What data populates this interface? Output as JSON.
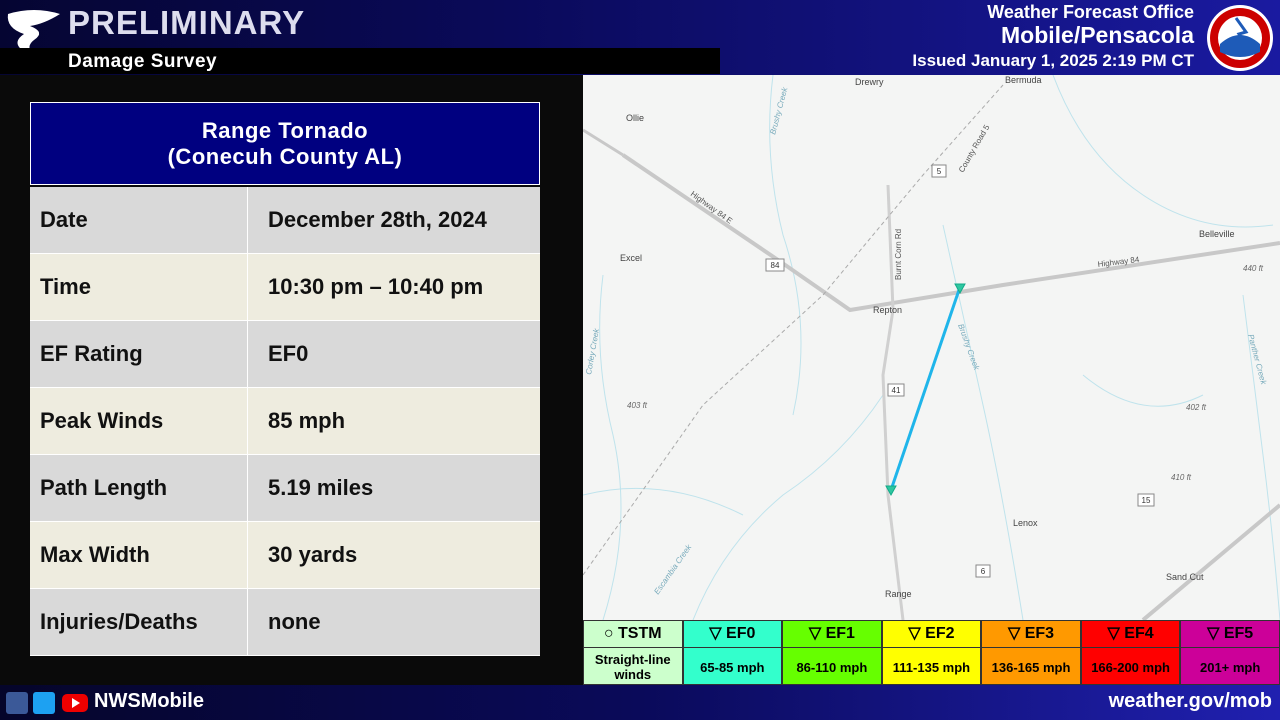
{
  "header": {
    "title": "PRELIMINARY",
    "subtitle": "Damage Survey",
    "office": "Weather Forecast Office",
    "location": "Mobile/Pensacola",
    "issued": "Issued January 1, 2025 2:19 PM CT"
  },
  "table": {
    "title": [
      "Range Tornado",
      "(Conecuh County AL)"
    ],
    "rows": [
      [
        "Date",
        "December 28th, 2024"
      ],
      [
        "Time",
        "10:30 pm – 10:40 pm"
      ],
      [
        "EF Rating",
        "EF0"
      ],
      [
        "Peak Winds",
        "85 mph"
      ],
      [
        "Path Length",
        "5.19 miles"
      ],
      [
        "Max Width",
        "30 yards"
      ],
      [
        "Injuries/Deaths",
        "none"
      ]
    ]
  },
  "map": {
    "places": [
      "Drewry",
      "Ollie",
      "Bermuda",
      "Excel",
      "Repton",
      "Belleville",
      "Lenox",
      "Range",
      "Sand Cut"
    ],
    "roads": [
      "Highway 84 E",
      "Highway 84",
      "Burnt Corn Rd",
      "County Road 5"
    ],
    "creeks": [
      "Brushy Creek",
      "Brushy Creek",
      "Corley Creek",
      "Escambia Creek",
      "Panther Creek"
    ],
    "elevations": [
      "403 ft",
      "402 ft",
      "440 ft",
      "410 ft"
    ],
    "shields": [
      "5",
      "84",
      "41",
      "15",
      "6"
    ]
  },
  "legend": [
    {
      "label": "○ TSTM",
      "description": "Straight-line winds"
    },
    {
      "label": "▽ EF0",
      "description": "65-85 mph"
    },
    {
      "label": "▽ EF1",
      "description": "86-110 mph"
    },
    {
      "label": "▽ EF2",
      "description": "111-135 mph"
    },
    {
      "label": "▽ EF3",
      "description": "136-165 mph"
    },
    {
      "label": "▽ EF4",
      "description": "166-200 mph"
    },
    {
      "label": "▽ EF5",
      "description": "201+ mph"
    }
  ],
  "footer": {
    "handle": "NWSMobile",
    "url": "weather.gov/mob"
  }
}
